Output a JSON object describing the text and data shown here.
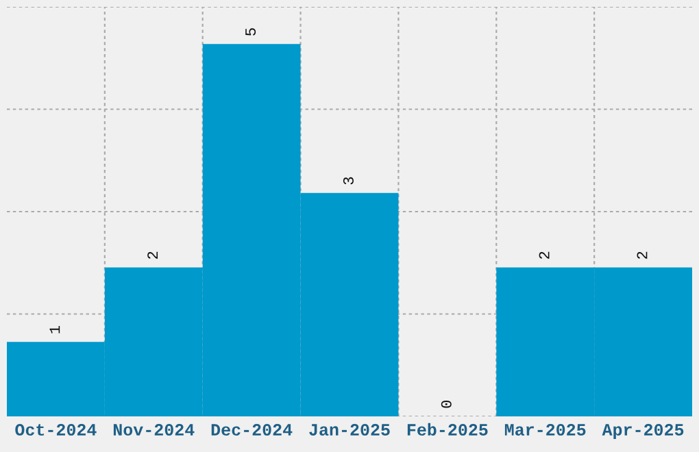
{
  "chart_data": {
    "type": "bar",
    "categories": [
      "Oct-2024",
      "Nov-2024",
      "Dec-2024",
      "Jan-2025",
      "Feb-2025",
      "Mar-2025",
      "Apr-2025"
    ],
    "values": [
      1,
      2,
      5,
      3,
      0,
      2,
      2
    ],
    "color": "#0099cc",
    "data_labels": true,
    "ylim": [
      0,
      5.5
    ],
    "yticks": [
      {
        "value": 0,
        "label": null
      },
      {
        "value": 1.375,
        "label": null
      },
      {
        "value": 2.75,
        "label": null
      },
      {
        "value": 4.125,
        "label": null
      },
      {
        "value": 5.5,
        "label": null
      }
    ],
    "tick_labels": "x",
    "grid": true,
    "legend": false
  }
}
